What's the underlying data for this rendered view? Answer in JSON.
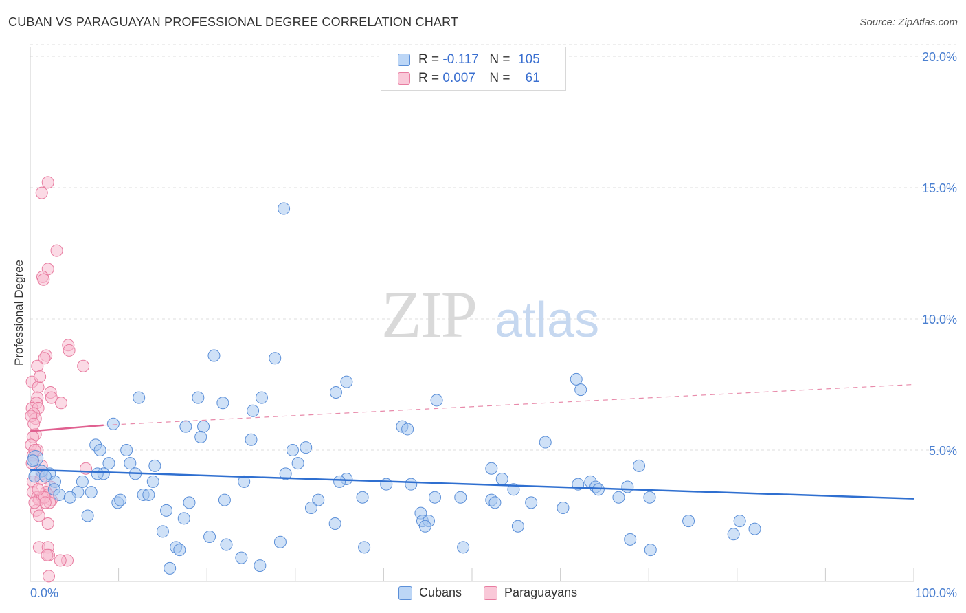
{
  "title": "CUBAN VS PARAGUAYAN PROFESSIONAL DEGREE CORRELATION CHART",
  "source": "Source: ZipAtlas.com",
  "watermark": {
    "zip": "ZIP",
    "atlas": "atlas"
  },
  "legend": {
    "r_label": "R =",
    "n_label": "N =",
    "rows": [
      {
        "name": "Cubans",
        "r": "-0.117",
        "n": "105",
        "color": "#a8c8f0",
        "stroke": "#5b8fd8"
      },
      {
        "name": "Paraguayans",
        "r": "0.007",
        "n": "61",
        "color": "#f8bcd0",
        "stroke": "#e87ca0"
      }
    ]
  },
  "bottom_legend": [
    {
      "label": "Cubans"
    },
    {
      "label": "Paraguayans"
    }
  ],
  "chart_data": {
    "type": "scatter",
    "title": "CUBAN VS PARAGUAYAN PROFESSIONAL DEGREE CORRELATION CHART",
    "xlabel": "",
    "ylabel": "Professional Degree",
    "xlim": [
      0,
      100
    ],
    "ylim": [
      0,
      20.5
    ],
    "x_tick_labels": [
      "0.0%",
      "100.0%"
    ],
    "y_ticks": [
      5,
      10,
      15,
      20
    ],
    "y_tick_labels": [
      "5.0%",
      "10.0%",
      "15.0%",
      "20.0%"
    ],
    "grid": true,
    "series": [
      {
        "name": "Cubans",
        "color": "#a8c8f0",
        "stroke": "#5b8fd8",
        "points": [
          [
            28.7,
            14.2
          ],
          [
            20.8,
            8.6
          ],
          [
            27.7,
            8.5
          ],
          [
            35.8,
            7.6
          ],
          [
            34.6,
            7.2
          ],
          [
            61.8,
            7.7
          ],
          [
            62.3,
            7.3
          ],
          [
            12.3,
            7.0
          ],
          [
            19.0,
            7.0
          ],
          [
            26.2,
            7.0
          ],
          [
            21.8,
            6.8
          ],
          [
            46.0,
            6.9
          ],
          [
            25.2,
            6.5
          ],
          [
            9.4,
            6.0
          ],
          [
            17.6,
            5.9
          ],
          [
            19.6,
            5.9
          ],
          [
            42.1,
            5.9
          ],
          [
            42.7,
            5.8
          ],
          [
            19.3,
            5.5
          ],
          [
            25.0,
            5.4
          ],
          [
            7.4,
            5.2
          ],
          [
            31.2,
            5.1
          ],
          [
            58.3,
            5.3
          ],
          [
            7.9,
            5.0
          ],
          [
            10.9,
            5.0
          ],
          [
            29.7,
            5.0
          ],
          [
            0.6,
            4.7
          ],
          [
            0.3,
            4.6
          ],
          [
            8.9,
            4.5
          ],
          [
            11.3,
            4.5
          ],
          [
            14.1,
            4.4
          ],
          [
            30.3,
            4.5
          ],
          [
            68.9,
            4.4
          ],
          [
            52.2,
            4.3
          ],
          [
            2.2,
            4.1
          ],
          [
            8.3,
            4.1
          ],
          [
            11.9,
            4.1
          ],
          [
            1.3,
            4.2
          ],
          [
            28.9,
            4.1
          ],
          [
            2.8,
            3.8
          ],
          [
            5.9,
            3.8
          ],
          [
            13.9,
            3.8
          ],
          [
            24.2,
            3.8
          ],
          [
            35.8,
            3.9
          ],
          [
            35.0,
            3.8
          ],
          [
            40.3,
            3.7
          ],
          [
            43.1,
            3.7
          ],
          [
            53.4,
            3.9
          ],
          [
            62.0,
            3.7
          ],
          [
            63.4,
            3.8
          ],
          [
            67.6,
            3.6
          ],
          [
            2.7,
            3.5
          ],
          [
            5.4,
            3.4
          ],
          [
            54.7,
            3.5
          ],
          [
            64.0,
            3.6
          ],
          [
            64.3,
            3.5
          ],
          [
            3.3,
            3.3
          ],
          [
            4.5,
            3.2
          ],
          [
            6.9,
            3.4
          ],
          [
            12.8,
            3.3
          ],
          [
            13.4,
            3.3
          ],
          [
            22.0,
            3.1
          ],
          [
            32.6,
            3.1
          ],
          [
            37.6,
            3.2
          ],
          [
            45.8,
            3.2
          ],
          [
            48.7,
            3.2
          ],
          [
            52.2,
            3.1
          ],
          [
            66.6,
            3.2
          ],
          [
            70.1,
            3.2
          ],
          [
            9.9,
            3.0
          ],
          [
            10.2,
            3.1
          ],
          [
            18.0,
            3.0
          ],
          [
            52.6,
            3.0
          ],
          [
            56.7,
            3.0
          ],
          [
            15.4,
            2.7
          ],
          [
            31.8,
            2.8
          ],
          [
            44.2,
            2.6
          ],
          [
            60.3,
            2.8
          ],
          [
            6.5,
            2.5
          ],
          [
            17.4,
            2.4
          ],
          [
            34.5,
            2.2
          ],
          [
            44.4,
            2.3
          ],
          [
            45.1,
            2.3
          ],
          [
            55.2,
            2.1
          ],
          [
            44.7,
            2.1
          ],
          [
            74.5,
            2.3
          ],
          [
            80.3,
            2.3
          ],
          [
            15.0,
            1.9
          ],
          [
            20.3,
            1.7
          ],
          [
            79.6,
            1.8
          ],
          [
            82.0,
            2.0
          ],
          [
            67.9,
            1.6
          ],
          [
            16.5,
            1.3
          ],
          [
            16.9,
            1.2
          ],
          [
            22.2,
            1.4
          ],
          [
            28.3,
            1.5
          ],
          [
            37.8,
            1.3
          ],
          [
            49.0,
            1.3
          ],
          [
            70.2,
            1.2
          ],
          [
            23.9,
            0.9
          ],
          [
            15.8,
            0.5
          ],
          [
            26.0,
            0.6
          ],
          [
            0.5,
            4.0
          ],
          [
            1.7,
            4.0
          ],
          [
            7.6,
            4.1
          ]
        ],
        "trend": {
          "x": [
            0,
            100
          ],
          "y": [
            4.25,
            3.15
          ]
        }
      },
      {
        "name": "Paraguayans",
        "color": "#f8bcd0",
        "stroke": "#e87ca0",
        "points": [
          [
            2.0,
            15.2
          ],
          [
            1.3,
            14.8
          ],
          [
            3.0,
            12.6
          ],
          [
            2.0,
            11.9
          ],
          [
            1.4,
            11.6
          ],
          [
            1.5,
            11.5
          ],
          [
            4.3,
            9.0
          ],
          [
            4.4,
            8.8
          ],
          [
            1.8,
            8.6
          ],
          [
            1.6,
            8.5
          ],
          [
            0.8,
            8.2
          ],
          [
            6.0,
            8.2
          ],
          [
            0.2,
            7.6
          ],
          [
            0.9,
            7.4
          ],
          [
            2.3,
            7.2
          ],
          [
            2.4,
            7.0
          ],
          [
            0.8,
            7.0
          ],
          [
            0.7,
            6.8
          ],
          [
            3.5,
            6.8
          ],
          [
            0.2,
            6.6
          ],
          [
            0.9,
            6.6
          ],
          [
            0.4,
            6.4
          ],
          [
            0.6,
            6.2
          ],
          [
            0.1,
            6.3
          ],
          [
            0.6,
            5.6
          ],
          [
            0.3,
            5.5
          ],
          [
            0.1,
            5.2
          ],
          [
            0.8,
            5.0
          ],
          [
            0.3,
            4.8
          ],
          [
            6.3,
            4.3
          ],
          [
            1.3,
            4.1
          ],
          [
            0.3,
            3.8
          ],
          [
            1.2,
            3.9
          ],
          [
            2.3,
            3.6
          ],
          [
            0.3,
            3.4
          ],
          [
            1.8,
            3.4
          ],
          [
            2.0,
            3.3
          ],
          [
            0.8,
            3.2
          ],
          [
            1.0,
            3.1
          ],
          [
            1.4,
            3.2
          ],
          [
            2.4,
            3.1
          ],
          [
            2.2,
            3.0
          ],
          [
            1.6,
            3.2
          ],
          [
            0.7,
            2.7
          ],
          [
            1.0,
            2.5
          ],
          [
            2.0,
            2.2
          ],
          [
            1.0,
            1.3
          ],
          [
            2.0,
            1.3
          ],
          [
            2.1,
            1.0
          ],
          [
            1.9,
            1.0
          ],
          [
            4.2,
            0.8
          ],
          [
            3.4,
            0.8
          ],
          [
            2.1,
            0.2
          ],
          [
            0.2,
            4.5
          ],
          [
            0.5,
            5.0
          ],
          [
            1.1,
            7.8
          ],
          [
            0.4,
            6.0
          ],
          [
            1.7,
            3.0
          ],
          [
            0.5,
            3.0
          ],
          [
            1.3,
            4.4
          ],
          [
            0.9,
            3.5
          ]
        ],
        "trend_solid": {
          "x": [
            0,
            8.3
          ],
          "y": [
            5.72,
            5.95
          ]
        },
        "trend_dashed": {
          "x": [
            8.3,
            100
          ],
          "y": [
            5.95,
            7.5
          ]
        }
      }
    ]
  }
}
